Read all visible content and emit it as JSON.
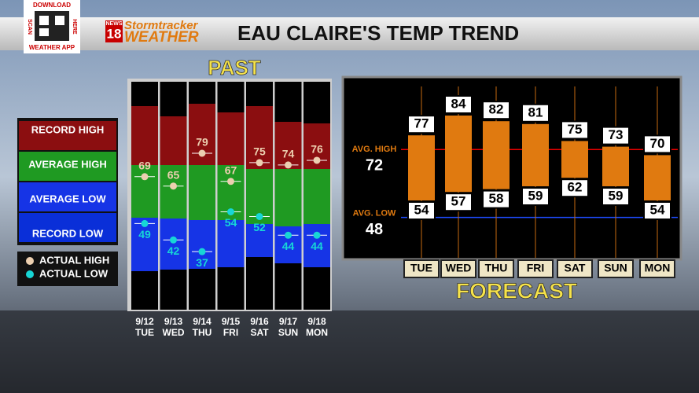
{
  "header": {
    "qr_top": "DOWNLOAD",
    "qr_left": "SCAN",
    "qr_right": "HERE",
    "qr_bottom": "WEATHER APP",
    "logo_news": "NEWS",
    "logo_num": "18",
    "logo_brand": "Stormtracker",
    "logo_weather": "WEATHER",
    "title": "EAU CLAIRE'S TEMP TREND"
  },
  "past": {
    "title": "PAST",
    "legend": [
      "RECORD HIGH",
      "AVERAGE HIGH",
      "AVERAGE LOW",
      "RECORD LOW"
    ],
    "markers": [
      "ACTUAL HIGH",
      "ACTUAL LOW"
    ],
    "days": [
      {
        "date": "9/12",
        "day": "TUE",
        "high": 69,
        "low": 49
      },
      {
        "date": "9/13",
        "day": "WED",
        "high": 65,
        "low": 42
      },
      {
        "date": "9/14",
        "day": "THU",
        "high": 79,
        "low": 37
      },
      {
        "date": "9/15",
        "day": "FRI",
        "high": 67,
        "low": 54
      },
      {
        "date": "9/16",
        "day": "SAT",
        "high": 75,
        "low": 52
      },
      {
        "date": "9/17",
        "day": "SUN",
        "high": 74,
        "low": 44
      },
      {
        "date": "9/18",
        "day": "MON",
        "high": 76,
        "low": 44
      }
    ]
  },
  "forecast": {
    "title": "FORECAST",
    "avg_high_label": "AVG. HIGH",
    "avg_high": 72,
    "avg_low_label": "AVG. LOW",
    "avg_low": 48,
    "days": [
      {
        "day": "TUE",
        "high": 77,
        "low": 54
      },
      {
        "day": "WED",
        "high": 84,
        "low": 57
      },
      {
        "day": "THU",
        "high": 82,
        "low": 58
      },
      {
        "day": "FRI",
        "high": 81,
        "low": 59
      },
      {
        "day": "SAT",
        "high": 75,
        "low": 62
      },
      {
        "day": "SUN",
        "high": 73,
        "low": 59
      },
      {
        "day": "MON",
        "high": 70,
        "low": 54
      }
    ]
  }
}
